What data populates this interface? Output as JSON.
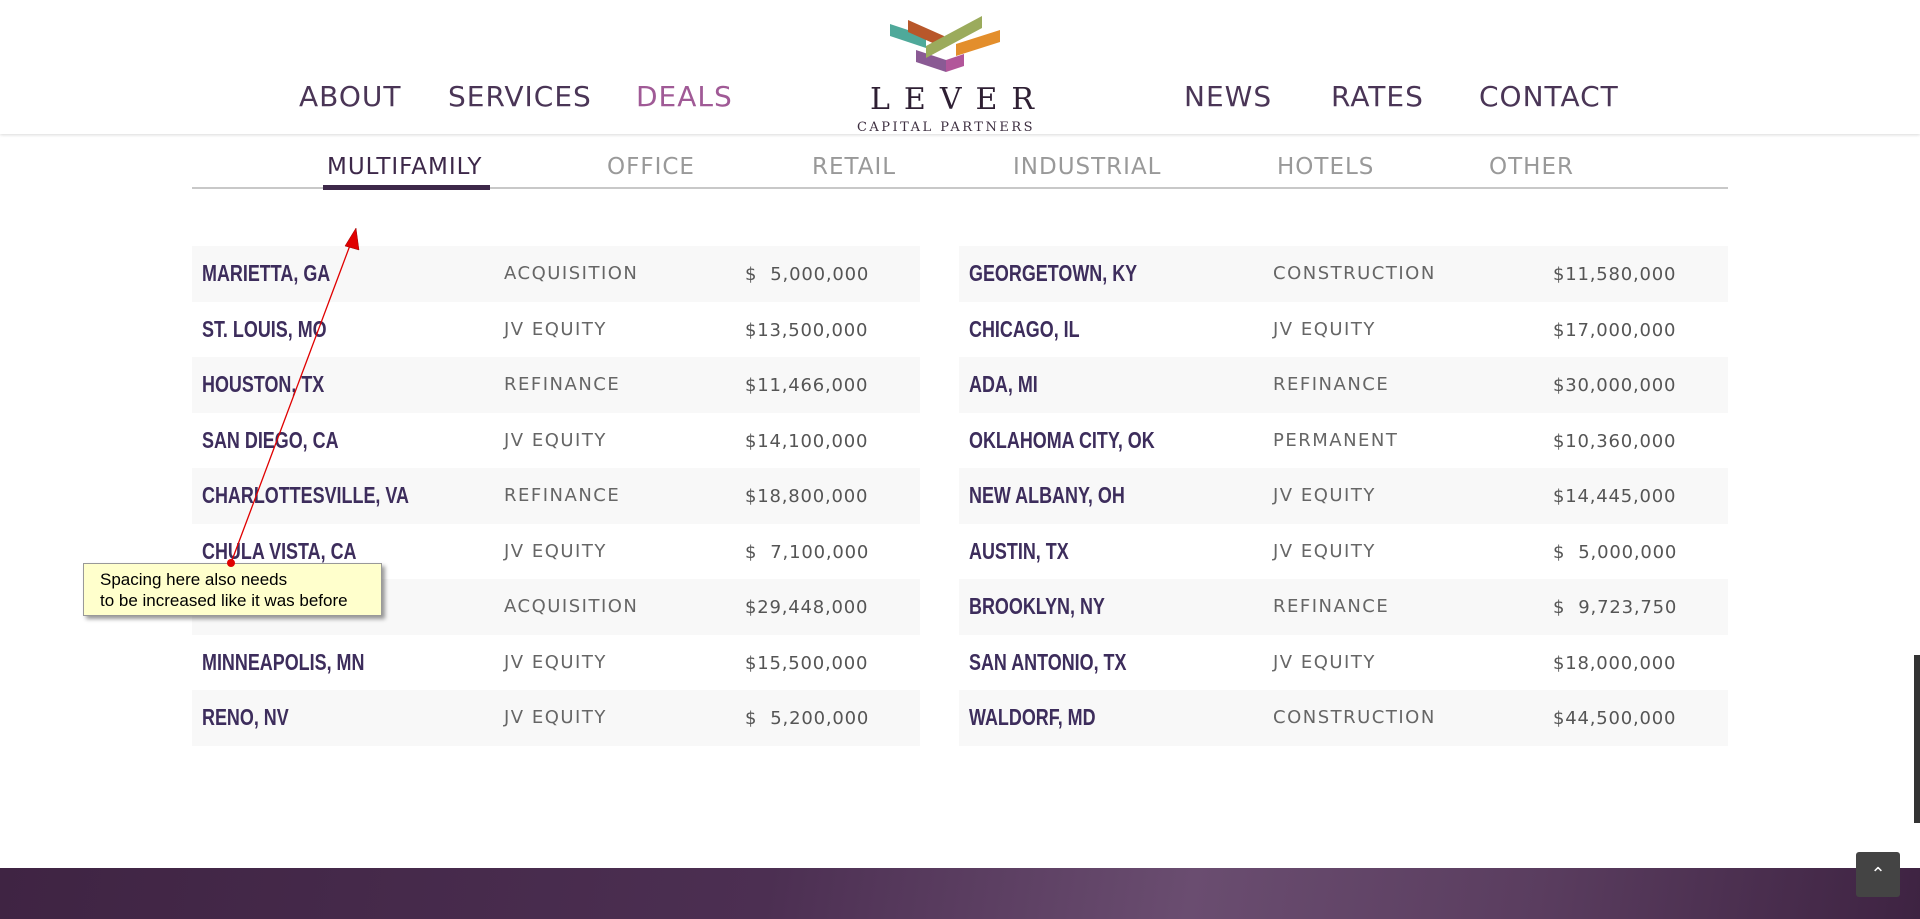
{
  "nav": {
    "left": [
      "ABOUT",
      "SERVICES",
      "DEALS"
    ],
    "right": [
      "NEWS",
      "RATES",
      "CONTACT"
    ],
    "active": "DEALS"
  },
  "logo": {
    "word": "LEVER",
    "sub": "CAPITAL PARTNERS"
  },
  "tabs": [
    "MULTIFAMILY",
    "OFFICE",
    "RETAIL",
    "INDUSTRIAL",
    "HOTELS",
    "OTHER"
  ],
  "active_tab": "MULTIFAMILY",
  "left_deals": [
    {
      "city": "MARIETTA, GA",
      "type": "ACQUISITION",
      "amount": "$  5,000,000"
    },
    {
      "city": "ST. LOUIS, MO",
      "type": "JV EQUITY",
      "amount": "$13,500,000"
    },
    {
      "city": "HOUSTON, TX",
      "type": "REFINANCE",
      "amount": "$11,466,000"
    },
    {
      "city": "SAN DIEGO, CA",
      "type": "JV EQUITY",
      "amount": "$14,100,000"
    },
    {
      "city": "CHARLOTTESVILLE, VA",
      "type": "REFINANCE",
      "amount": "$18,800,000"
    },
    {
      "city": "CHULA VISTA, CA",
      "type": "JV EQUITY",
      "amount": "$  7,100,000"
    },
    {
      "city": "",
      "type": "ACQUISITION",
      "amount": "$29,448,000"
    },
    {
      "city": "MINNEAPOLIS, MN",
      "type": "JV EQUITY",
      "amount": "$15,500,000"
    },
    {
      "city": "RENO, NV",
      "type": "JV EQUITY",
      "amount": "$  5,200,000"
    }
  ],
  "right_deals": [
    {
      "city": "GEORGETOWN, KY",
      "type": "CONSTRUCTION",
      "amount": "$11,580,000"
    },
    {
      "city": "CHICAGO, IL",
      "type": "JV EQUITY",
      "amount": "$17,000,000"
    },
    {
      "city": "ADA, MI",
      "type": "REFINANCE",
      "amount": "$30,000,000"
    },
    {
      "city": "OKLAHOMA CITY, OK",
      "type": "PERMANENT",
      "amount": "$10,360,000"
    },
    {
      "city": "NEW ALBANY, OH",
      "type": "JV EQUITY",
      "amount": "$14,445,000"
    },
    {
      "city": "AUSTIN, TX",
      "type": "JV EQUITY",
      "amount": "$  5,000,000"
    },
    {
      "city": "BROOKLYN, NY",
      "type": "REFINANCE",
      "amount": "$  9,723,750"
    },
    {
      "city": "SAN ANTONIO, TX",
      "type": "JV EQUITY",
      "amount": "$18,000,000"
    },
    {
      "city": "WALDORF, MD",
      "type": "CONSTRUCTION",
      "amount": "$44,500,000"
    }
  ],
  "annotation": {
    "line1": "Spacing here also needs",
    "line2": "to be increased like it was before"
  },
  "back_to_top_icon": "chevron-up-icon",
  "colors": {
    "brand_purple": "#3d2849",
    "active_nav": "#a05a96",
    "annotation_arrow": "#e00000"
  }
}
